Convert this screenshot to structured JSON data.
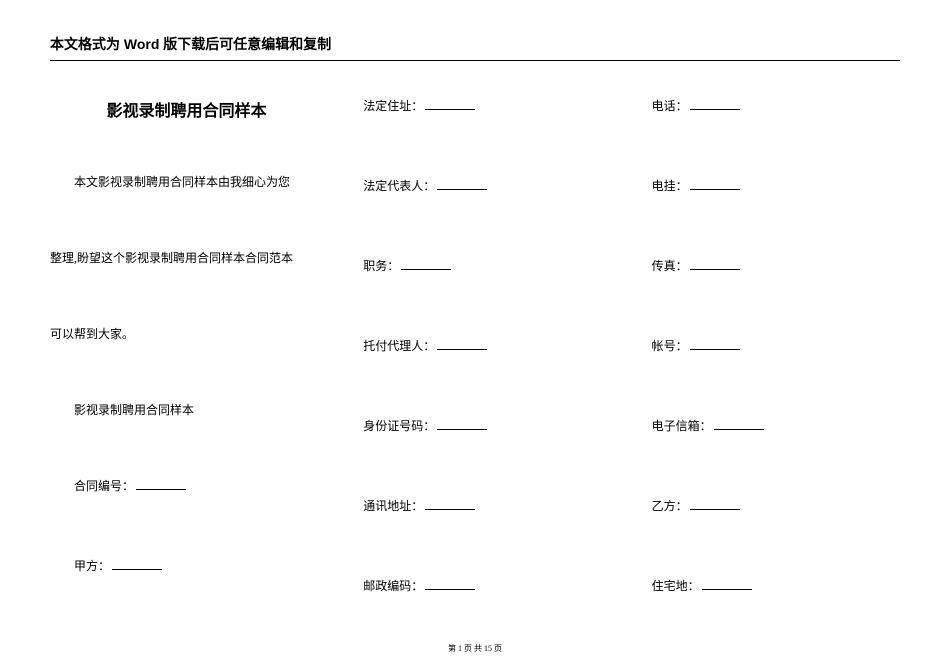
{
  "header": "本文格式为 Word 版下载后可任意编辑和复制",
  "left": {
    "title": "影视录制聘用合同样本",
    "p1": "本文影视录制聘用合同样本由我细心为您",
    "p2": "整理,盼望这个影视录制聘用合同样本合同范本",
    "p3": "可以帮到大家。",
    "p4": "影视录制聘用合同样本",
    "f1_label": "合同编号：",
    "f2_label": "甲方："
  },
  "mid": {
    "f1": "法定住址：",
    "f2": "法定代表人：",
    "f3": "职务：",
    "f4": "托付代理人：",
    "f5": "身份证号码：",
    "f6": "通讯地址：",
    "f7": "邮政编码："
  },
  "right": {
    "f1": "电话：",
    "f2": "电挂：",
    "f3": "传真：",
    "f4": "帐号：",
    "f5": "电子信箱：",
    "f6": "乙方：",
    "f7": "住宅地："
  },
  "footer": "第 1 页 共 15 页"
}
